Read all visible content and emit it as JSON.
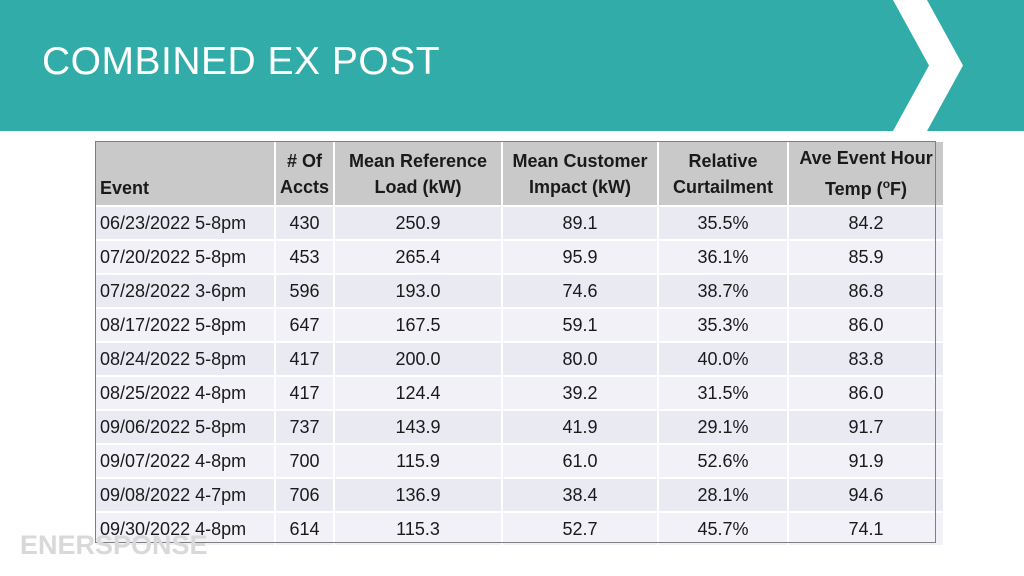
{
  "slide": {
    "title": "COMBINED EX POST"
  },
  "colors": {
    "header_bg": "#31aca9",
    "header_text": "#ffffff",
    "chevron": "#ffffff",
    "table_header_bg": "#c9c9c9",
    "table_row_bg": "#eaeaf3"
  },
  "table": {
    "headers": [
      {
        "line1": "",
        "line2": "Event"
      },
      {
        "line1": "# Of",
        "line2": "Accts"
      },
      {
        "line1": "Mean Reference",
        "line2": "Load (kW)"
      },
      {
        "line1": "Mean Customer",
        "line2": "Impact (kW)"
      },
      {
        "line1": "Relative",
        "line2": "Curtailment"
      },
      {
        "line1": "Ave Event Hour",
        "line2": "Temp (",
        "sup": "o",
        "line2_end": "F)"
      }
    ],
    "rows": [
      [
        "06/23/2022 5-8pm",
        "430",
        "250.9",
        "89.1",
        "35.5%",
        "84.2"
      ],
      [
        "07/20/2022 5-8pm",
        "453",
        "265.4",
        "95.9",
        "36.1%",
        "85.9"
      ],
      [
        "07/28/2022 3-6pm",
        "596",
        "193.0",
        "74.6",
        "38.7%",
        "86.8"
      ],
      [
        "08/17/2022 5-8pm",
        "647",
        "167.5",
        "59.1",
        "35.3%",
        "86.0"
      ],
      [
        "08/24/2022 5-8pm",
        "417",
        "200.0",
        "80.0",
        "40.0%",
        "83.8"
      ],
      [
        "08/25/2022 4-8pm",
        "417",
        "124.4",
        "39.2",
        "31.5%",
        "86.0"
      ],
      [
        "09/06/2022 5-8pm",
        "737",
        "143.9",
        "41.9",
        "29.1%",
        "91.7"
      ],
      [
        "09/07/2022 4-8pm",
        "700",
        "115.9",
        "61.0",
        "52.6%",
        "91.9"
      ],
      [
        "09/08/2022 4-7pm",
        "706",
        "136.9",
        "38.4",
        "28.1%",
        "94.6"
      ],
      [
        "09/30/2022 4-8pm",
        "614",
        "115.3",
        "52.7",
        "45.7%",
        "74.1"
      ]
    ]
  },
  "logo": {
    "text": "ENERSPONSE",
    "icon": "enersponse-logo"
  }
}
